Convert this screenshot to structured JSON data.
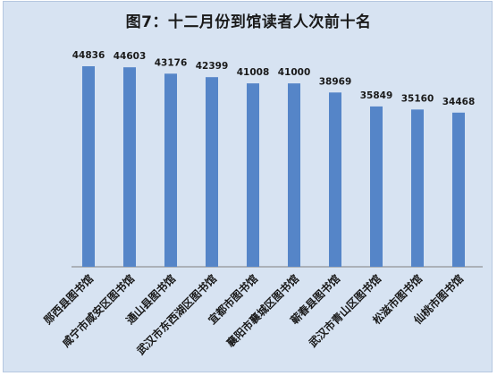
{
  "chart_data": {
    "type": "bar",
    "title": "图7：十二月份到馆读者人次前十名",
    "categories": [
      "郧西县图书馆",
      "咸宁市咸安区图书馆",
      "通山县图书馆",
      "武汉市东西湖区图书馆",
      "宜都市图书馆",
      "襄阳市襄城区图书馆",
      "蕲春县图书馆",
      "武汉市青山区图书馆",
      "松滋市图书馆",
      "仙桃市图书馆"
    ],
    "values": [
      44836,
      44603,
      43176,
      42399,
      41008,
      41000,
      38969,
      35849,
      35160,
      34468
    ],
    "ylim": [
      0,
      50000
    ],
    "grid": false,
    "legend": "none",
    "colors": {
      "bar": "#5585c8",
      "background": "#d7e3f2",
      "axis": "#7f7f7f"
    }
  }
}
